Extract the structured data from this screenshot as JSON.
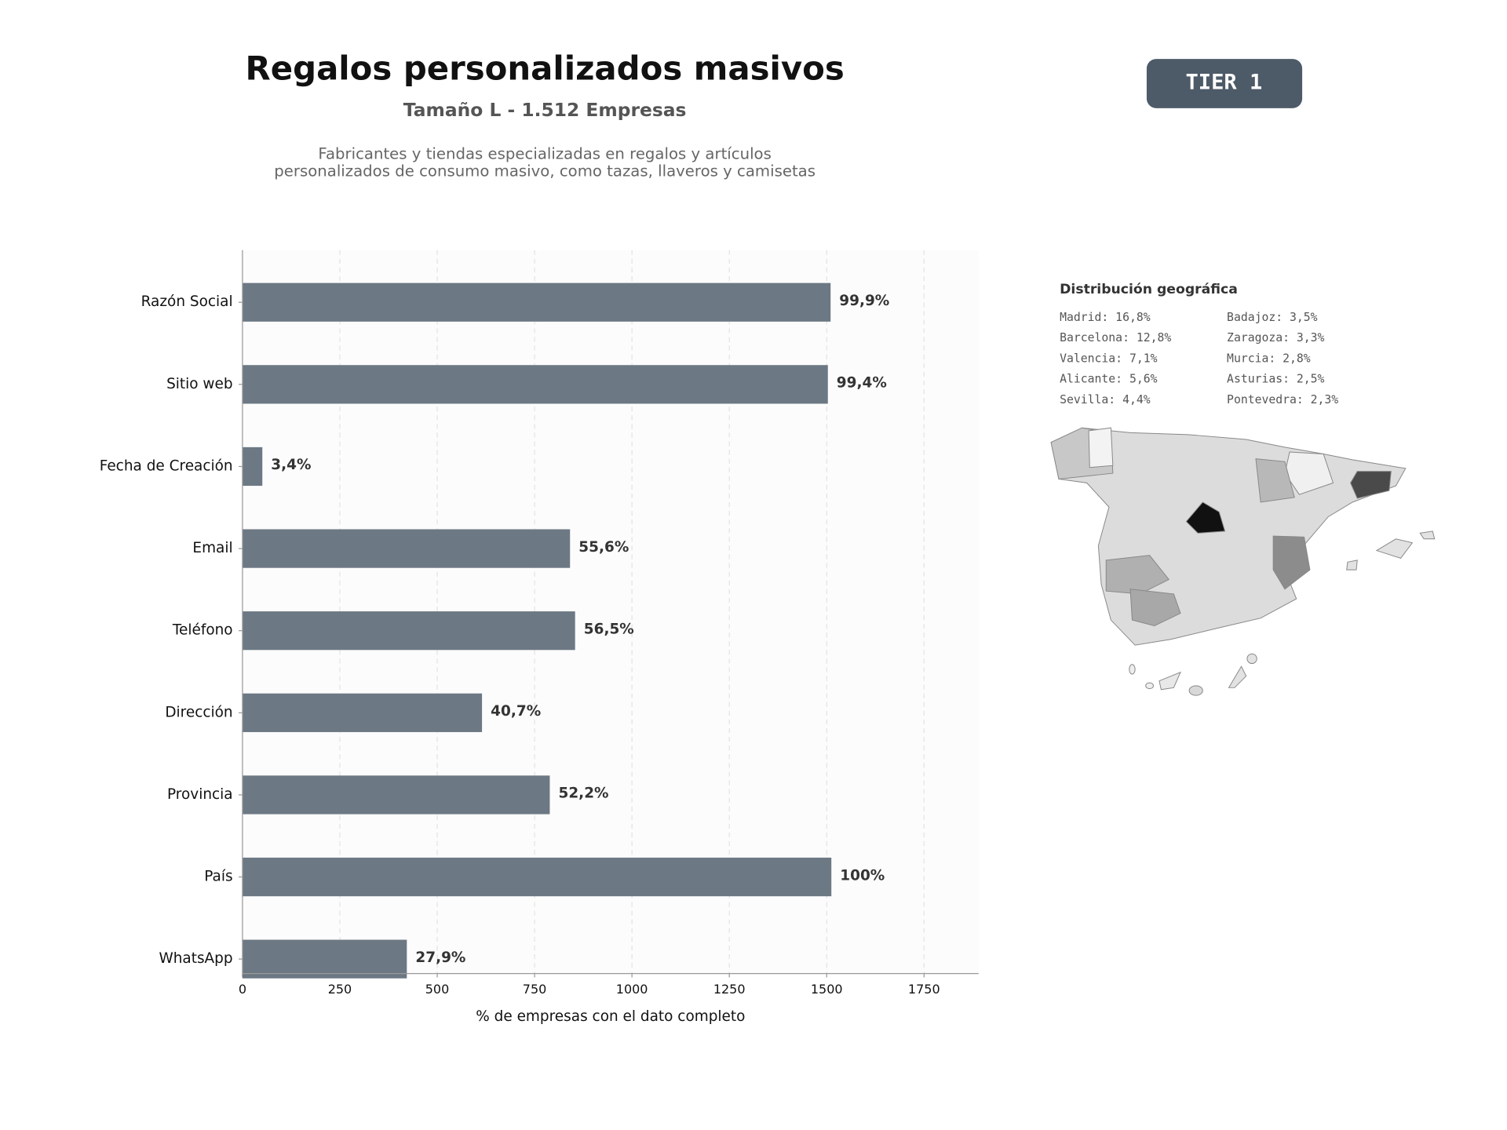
{
  "header": {
    "title": "Regalos personalizados masivos",
    "subtitle": "Tamaño L - 1.512 Empresas",
    "description": [
      "Fabricantes y tiendas especializadas en regalos y artículos",
      "personalizados de consumo masivo, como tazas, llaveros y camisetas"
    ],
    "badge": "TIER 1"
  },
  "chart_data": {
    "type": "bar",
    "orientation": "horizontal",
    "categories": [
      "Razón Social",
      "Sitio web",
      "Fecha de Creación",
      "Email",
      "Teléfono",
      "Dirección",
      "Provincia",
      "País",
      "WhatsApp"
    ],
    "values": [
      1510,
      1503,
      51,
      841,
      854,
      615,
      789,
      1512,
      422
    ],
    "value_labels": [
      "99,9%",
      "99,4%",
      "3,4%",
      "55,6%",
      "56,5%",
      "40,7%",
      "52,2%",
      "100%",
      "27,9%"
    ],
    "color": "#6c7883",
    "xlim": [
      0,
      1890
    ],
    "xticks": [
      0,
      250,
      500,
      750,
      1000,
      1250,
      1500,
      1750
    ],
    "xlabel": "% de empresas con el dato completo",
    "grid": true
  },
  "geo": {
    "title": "Distribución geográfica",
    "entries": [
      "Madrid: 16,8%",
      "Barcelona: 12,8%",
      "Valencia: 7,1%",
      "Alicante: 5,6%",
      "Sevilla: 4,4%",
      "Badajoz: 3,5%",
      "Zaragoza: 3,3%",
      "Murcia: 2,8%",
      "Asturias: 2,5%",
      "Pontevedra: 2,3%"
    ]
  }
}
